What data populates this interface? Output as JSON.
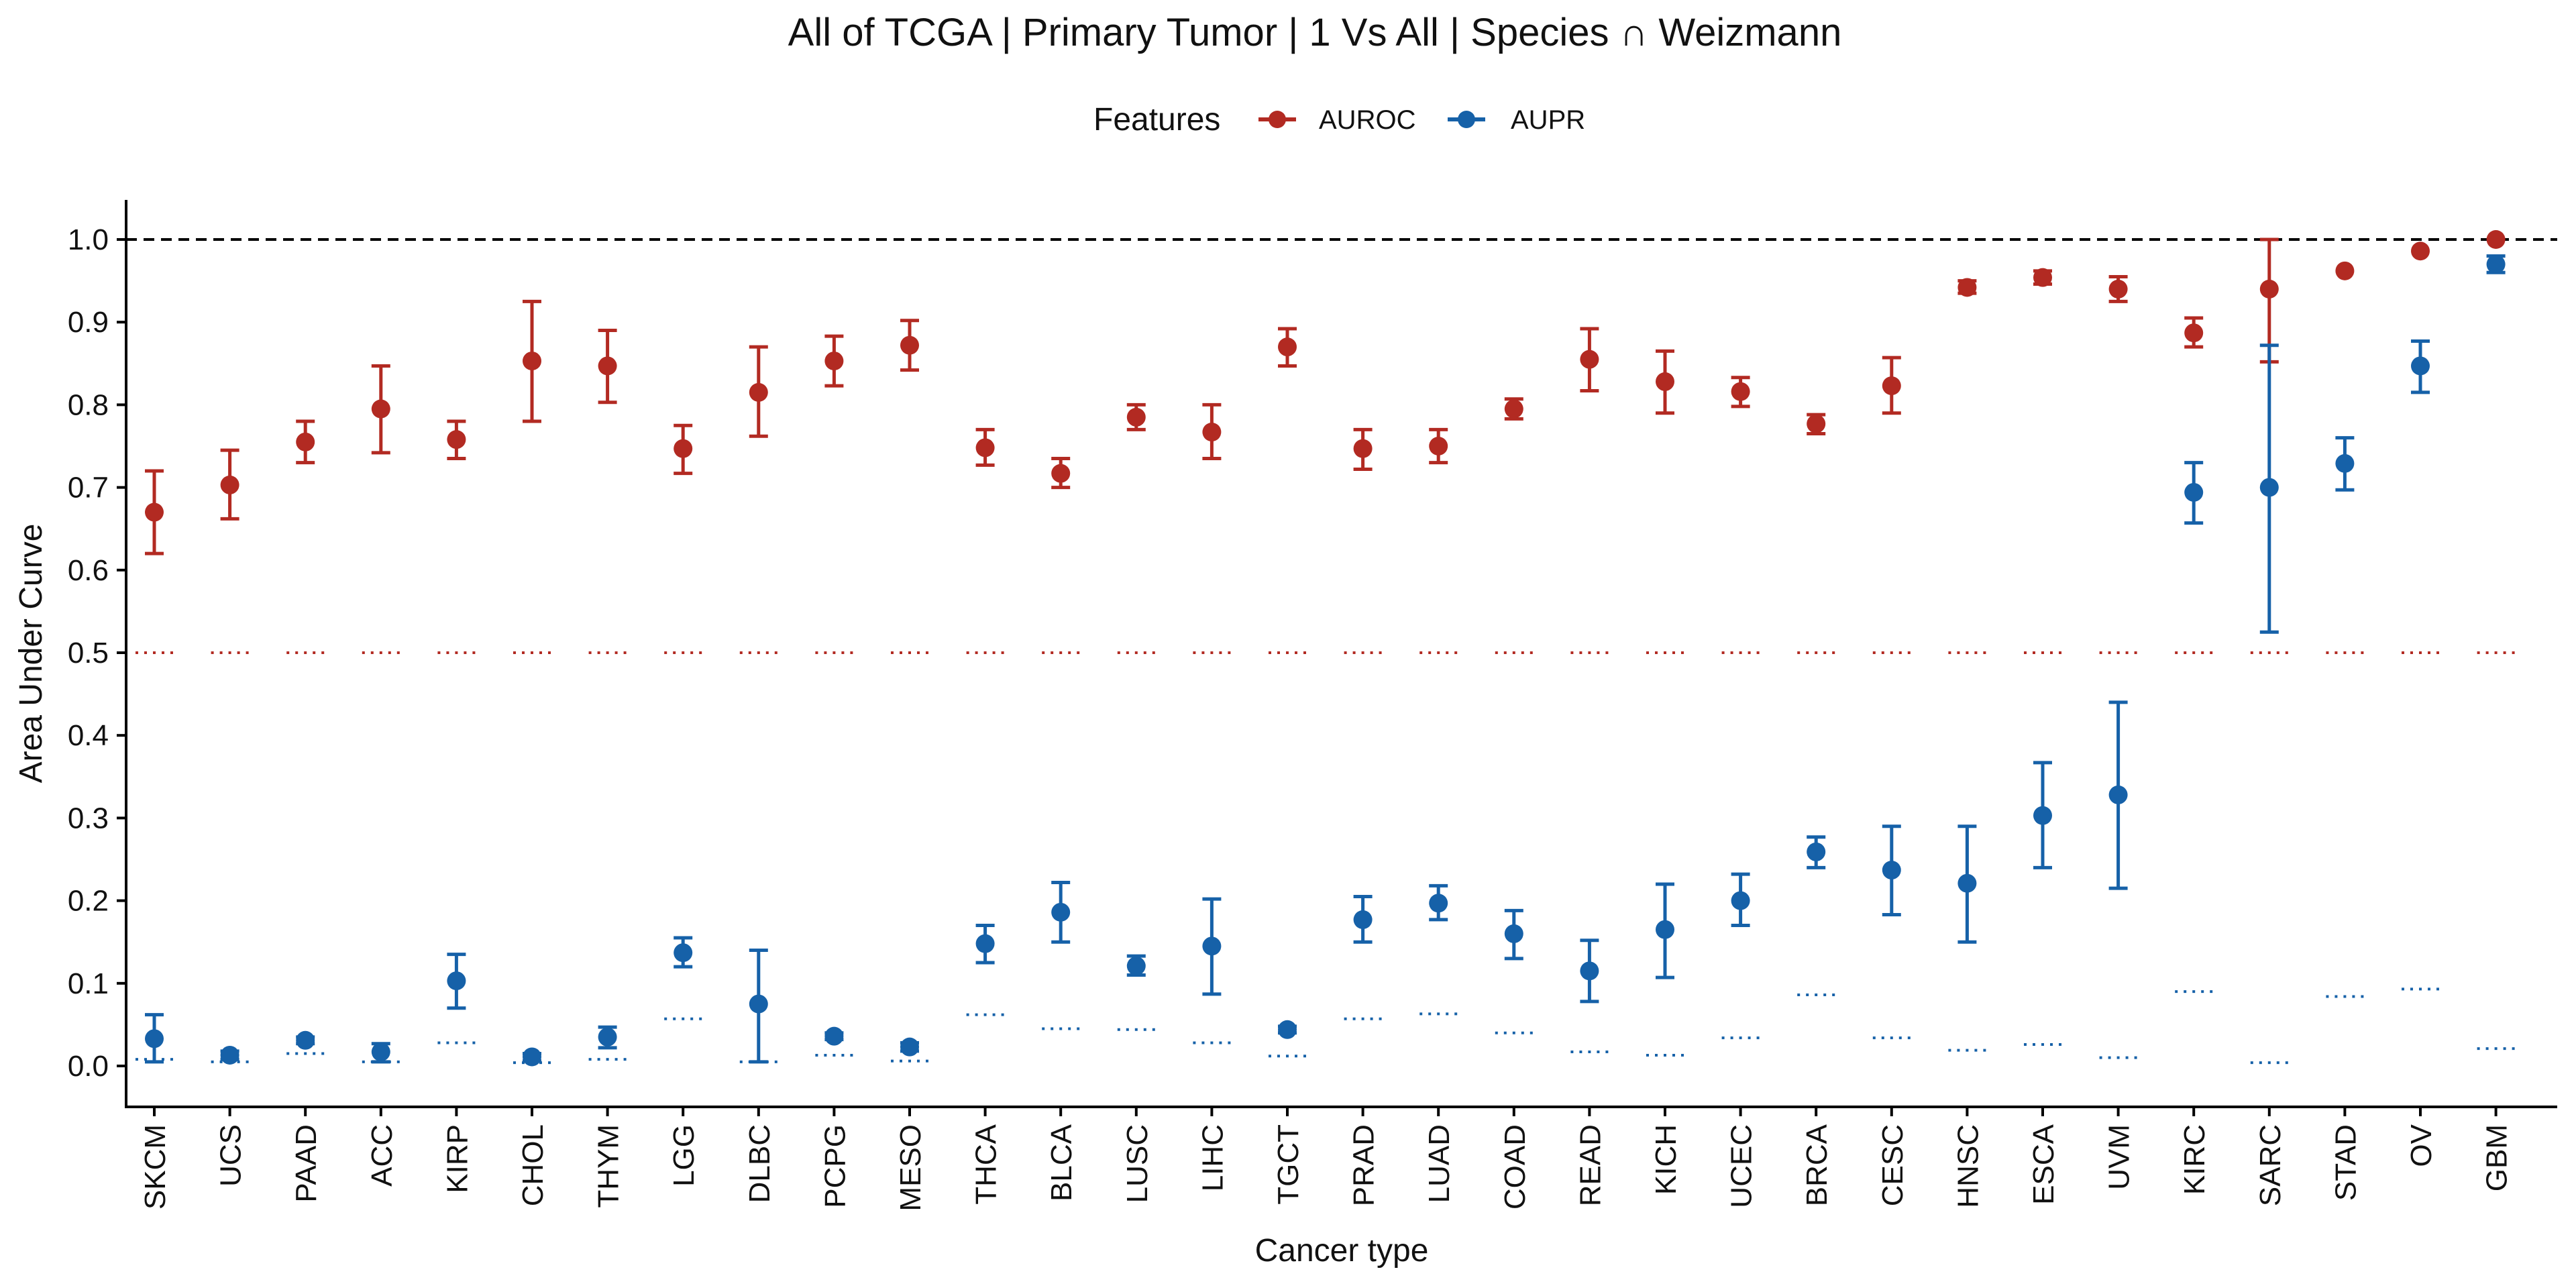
{
  "chart_data": {
    "type": "scatter",
    "title": "All of TCGA | Primary Tumor | 1 Vs All | Species ∩ Weizmann",
    "xlabel": "Cancer type",
    "ylabel": "Area Under Curve",
    "ylim": [
      -0.05,
      1.05
    ],
    "yticks": [
      "0.0",
      "0.1",
      "0.2",
      "0.3",
      "0.4",
      "0.5",
      "0.6",
      "0.7",
      "0.8",
      "0.9",
      "1.0"
    ],
    "reference_line": 1.0,
    "legend": {
      "title": "Features",
      "position": "top"
    },
    "categories": [
      "SKCM",
      "UCS",
      "PAAD",
      "ACC",
      "KIRP",
      "CHOL",
      "THYM",
      "LGG",
      "DLBC",
      "PCPG",
      "MESO",
      "THCA",
      "BLCA",
      "LUSC",
      "LIHC",
      "TGCT",
      "PRAD",
      "LUAD",
      "COAD",
      "READ",
      "KICH",
      "UCEC",
      "BRCA",
      "CESC",
      "HNSC",
      "ESCA",
      "UVM",
      "KIRC",
      "SARC",
      "STAD",
      "OV",
      "GBM"
    ],
    "series": [
      {
        "name": "AUROC",
        "color": "#B22A22",
        "values": [
          0.67,
          0.703,
          0.755,
          0.795,
          0.758,
          0.853,
          0.847,
          0.747,
          0.815,
          0.853,
          0.872,
          0.748,
          0.717,
          0.785,
          0.767,
          0.87,
          0.747,
          0.75,
          0.795,
          0.855,
          0.828,
          0.816,
          0.777,
          0.823,
          0.942,
          0.954,
          0.94,
          0.887,
          0.94,
          0.962,
          0.986,
          1.0
        ],
        "lower": [
          0.62,
          0.662,
          0.73,
          0.742,
          0.735,
          0.78,
          0.803,
          0.717,
          0.762,
          0.823,
          0.842,
          0.727,
          0.7,
          0.77,
          0.735,
          0.847,
          0.722,
          0.73,
          0.783,
          0.817,
          0.79,
          0.798,
          0.765,
          0.79,
          0.935,
          0.946,
          0.925,
          0.87,
          0.852,
          0.962,
          0.986,
          1.0
        ],
        "upper": [
          0.72,
          0.745,
          0.78,
          0.847,
          0.78,
          0.925,
          0.89,
          0.775,
          0.87,
          0.883,
          0.902,
          0.77,
          0.735,
          0.8,
          0.8,
          0.892,
          0.77,
          0.77,
          0.807,
          0.892,
          0.865,
          0.833,
          0.788,
          0.857,
          0.95,
          0.962,
          0.955,
          0.905,
          1.0,
          0.962,
          0.986,
          1.0
        ],
        "chance": [
          0.5,
          0.5,
          0.5,
          0.5,
          0.5,
          0.5,
          0.5,
          0.5,
          0.5,
          0.5,
          0.5,
          0.5,
          0.5,
          0.5,
          0.5,
          0.5,
          0.5,
          0.5,
          0.5,
          0.5,
          0.5,
          0.5,
          0.5,
          0.5,
          0.5,
          0.5,
          0.5,
          0.5,
          0.5,
          0.5,
          0.5,
          0.5
        ]
      },
      {
        "name": "AUPR",
        "color": "#1661A8",
        "values": [
          0.033,
          0.013,
          0.031,
          0.017,
          0.103,
          0.011,
          0.035,
          0.137,
          0.075,
          0.036,
          0.023,
          0.148,
          0.186,
          0.121,
          0.145,
          0.044,
          0.177,
          0.197,
          0.16,
          0.115,
          0.165,
          0.2,
          0.259,
          0.237,
          0.221,
          0.303,
          0.328,
          0.694,
          0.7,
          0.729,
          0.847,
          0.97
        ],
        "lower": [
          0.005,
          0.008,
          0.027,
          0.005,
          0.07,
          0.006,
          0.022,
          0.12,
          0.005,
          0.032,
          0.018,
          0.125,
          0.15,
          0.11,
          0.087,
          0.04,
          0.15,
          0.177,
          0.13,
          0.078,
          0.107,
          0.17,
          0.24,
          0.183,
          0.15,
          0.24,
          0.215,
          0.657,
          0.525,
          0.697,
          0.815,
          0.96
        ],
        "upper": [
          0.062,
          0.018,
          0.035,
          0.027,
          0.135,
          0.015,
          0.047,
          0.155,
          0.14,
          0.04,
          0.028,
          0.17,
          0.222,
          0.133,
          0.202,
          0.048,
          0.205,
          0.218,
          0.188,
          0.152,
          0.22,
          0.232,
          0.277,
          0.29,
          0.29,
          0.367,
          0.44,
          0.73,
          0.872,
          0.76,
          0.877,
          0.98
        ],
        "chance": [
          0.008,
          0.005,
          0.015,
          0.005,
          0.028,
          0.004,
          0.008,
          0.057,
          0.005,
          0.013,
          0.006,
          0.062,
          0.045,
          0.044,
          0.028,
          0.012,
          0.057,
          0.063,
          0.04,
          0.017,
          0.013,
          0.034,
          0.086,
          0.034,
          0.019,
          0.026,
          0.01,
          0.09,
          0.004,
          0.084,
          0.093,
          0.021
        ]
      }
    ]
  }
}
